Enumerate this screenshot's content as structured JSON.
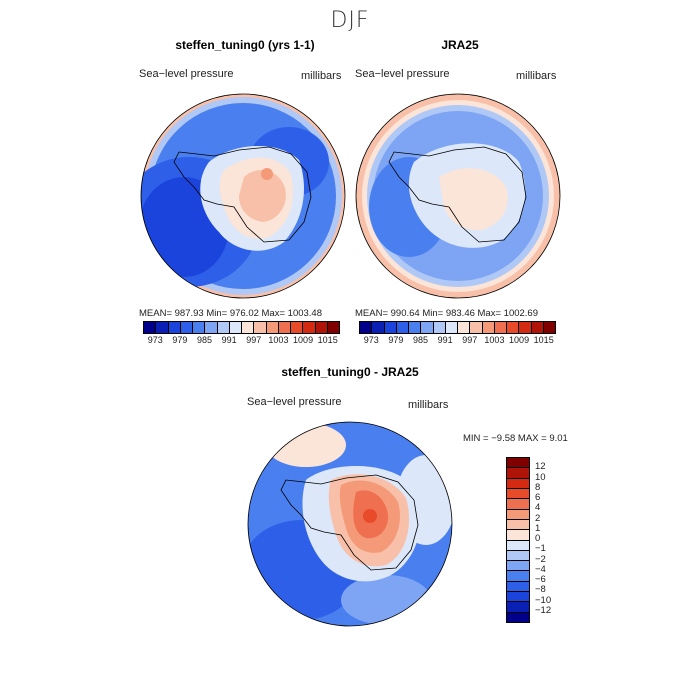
{
  "season": "DJF",
  "panels": [
    {
      "title": "steffen_tuning0 (yrs 1-1)",
      "variable": "Sea−level pressure",
      "units": "millibars",
      "stats": "MEAN= 987.93   Min= 976.02   Max= 1003.48"
    },
    {
      "title": "JRA25",
      "variable": "Sea−level pressure",
      "units": "millibars",
      "stats": "MEAN= 990.64   Min= 983.46   Max= 1002.69"
    },
    {
      "title": "steffen_tuning0 - JRA25",
      "variable": "Sea−level pressure",
      "units": "millibars",
      "stats": "MIN =   −9.58  MAX =     9.01"
    }
  ],
  "field_colorbar": {
    "ticks": [
      "973",
      "979",
      "985",
      "991",
      "997",
      "1003",
      "1009",
      "1015"
    ],
    "colors": [
      "#00008b",
      "#0a1fb4",
      "#1a44dc",
      "#2e5fe8",
      "#4a7ff0",
      "#7ea5f4",
      "#b0c8f5",
      "#dce8fa",
      "#fbe4d8",
      "#f8c0a8",
      "#f49a78",
      "#ef7050",
      "#e84b2a",
      "#d42a12",
      "#b01408",
      "#800000"
    ]
  },
  "diff_colorbar": {
    "ticks": [
      "12",
      "10",
      "8",
      "6",
      "4",
      "2",
      "1",
      "0",
      "−1",
      "−2",
      "−4",
      "−6",
      "−8",
      "−10",
      "−12"
    ],
    "colors": [
      "#800000",
      "#b01408",
      "#d42a12",
      "#e84b2a",
      "#ef7050",
      "#f49a78",
      "#f8c0a8",
      "#fbe4d8",
      "#dce8fa",
      "#b0c8f5",
      "#7ea5f4",
      "#4a7ff0",
      "#2e5fe8",
      "#1a44dc",
      "#0a1fb4",
      "#00008b"
    ]
  }
}
